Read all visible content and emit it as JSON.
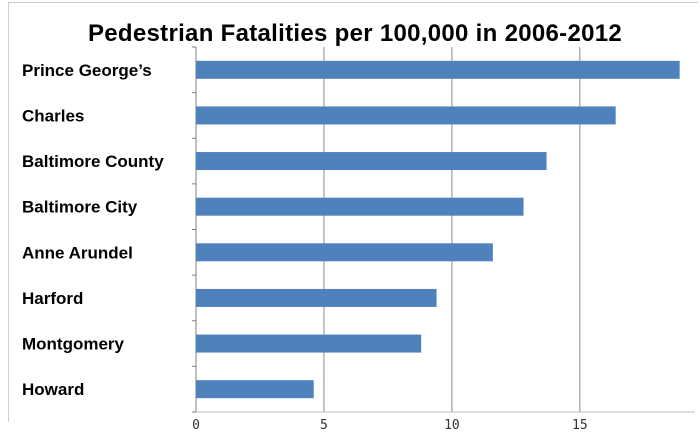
{
  "chart_data": {
    "type": "bar",
    "orientation": "horizontal",
    "title": "Pedestrian Fatalities per 100,000 in 2006-2012",
    "categories": [
      "Prince George’s",
      "Charles",
      "Baltimore County",
      "Baltimore City",
      "Anne Arundel",
      "Harford",
      "Montgomery",
      "Howard"
    ],
    "values": [
      18.9,
      16.4,
      13.7,
      12.8,
      11.6,
      9.4,
      8.8,
      4.6
    ],
    "xlim": [
      0,
      19.5
    ],
    "xticks": [
      0,
      5,
      10,
      15
    ],
    "xtick_labels": [
      "0",
      "5",
      "10",
      "15"
    ],
    "grid": "vertical",
    "bar_color": "#4f81bd",
    "grid_color": "#8c8c8c",
    "legend": "none"
  }
}
